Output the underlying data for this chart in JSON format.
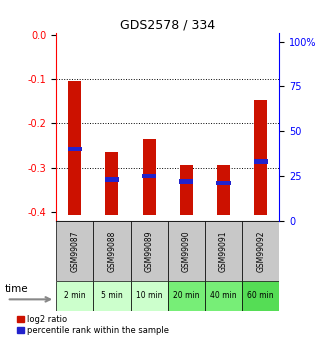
{
  "title": "GDS2578 / 334",
  "categories": [
    "GSM99087",
    "GSM99088",
    "GSM99089",
    "GSM99090",
    "GSM99091",
    "GSM99092"
  ],
  "time_labels": [
    "2 min",
    "5 min",
    "10 min",
    "20 min",
    "40 min",
    "60 min"
  ],
  "log2_bottoms": [
    -0.408,
    -0.408,
    -0.408,
    -0.408,
    -0.408,
    -0.408
  ],
  "log2_tops": [
    -0.105,
    -0.265,
    -0.235,
    -0.295,
    -0.295,
    -0.148
  ],
  "percentile_values": [
    40,
    23,
    25,
    22,
    21,
    33
  ],
  "ylim_left": [
    -0.42,
    0.005
  ],
  "ylim_right": [
    0,
    105
  ],
  "yticks_left": [
    0.0,
    -0.1,
    -0.2,
    -0.3,
    -0.4
  ],
  "yticks_right": [
    0,
    25,
    50,
    75,
    100
  ],
  "bar_color": "#cc1100",
  "blue_color": "#2222cc",
  "gray_bg": "#c8c8c8",
  "green_bg_light": "#ccffcc",
  "green_bg_dark": "#66ee66",
  "time_label_text": "time",
  "legend_items": [
    "log2 ratio",
    "percentile rank within the sample"
  ],
  "green_colors": [
    "#ccffcc",
    "#ccffcc",
    "#ccffcc",
    "#77ee77",
    "#77ee77",
    "#55dd55"
  ]
}
